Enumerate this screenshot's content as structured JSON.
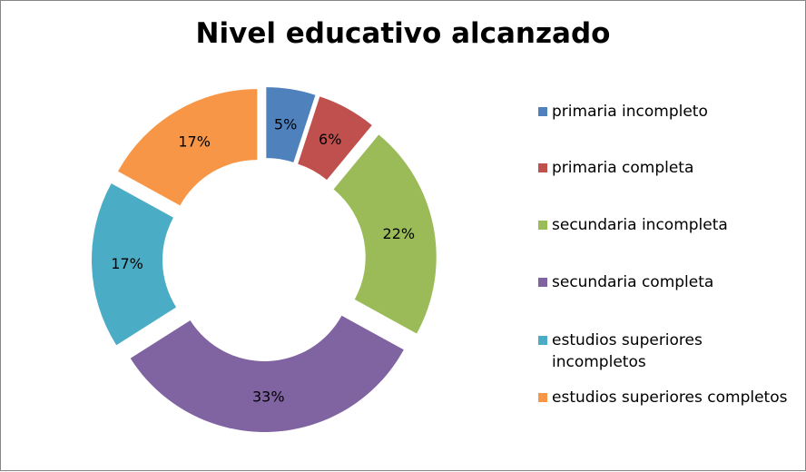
{
  "chart_data": {
    "type": "donut",
    "title": "Nivel educativo alcanzado",
    "categories": [
      "primaria incompleto",
      "primaria completa",
      "secundaria incompleta",
      "secundaria completa",
      "estudios superiores incompletos",
      "estudios superiores completos"
    ],
    "values": [
      5,
      6,
      22,
      33,
      17,
      17
    ],
    "data_labels": [
      "5%",
      "6%",
      "22%",
      "33%",
      "17%",
      "17%"
    ],
    "colors": [
      "#4f81bd",
      "#c0504d",
      "#9bbb59",
      "#8064a2",
      "#4bacc6",
      "#f79646"
    ],
    "legend_position": "right",
    "exploded": true
  },
  "legend": {
    "items": [
      {
        "label": "primaria incompleto",
        "color": "#4f81bd"
      },
      {
        "label": "primaria completa",
        "color": "#c0504d"
      },
      {
        "label": "secundaria incompleta",
        "color": "#9bbb59"
      },
      {
        "label": "secundaria completa",
        "color": "#8064a2"
      },
      {
        "label": "estudios superiores incompletos",
        "color": "#4bacc6"
      },
      {
        "label": "estudios superiores completos",
        "color": "#f79646"
      }
    ]
  }
}
